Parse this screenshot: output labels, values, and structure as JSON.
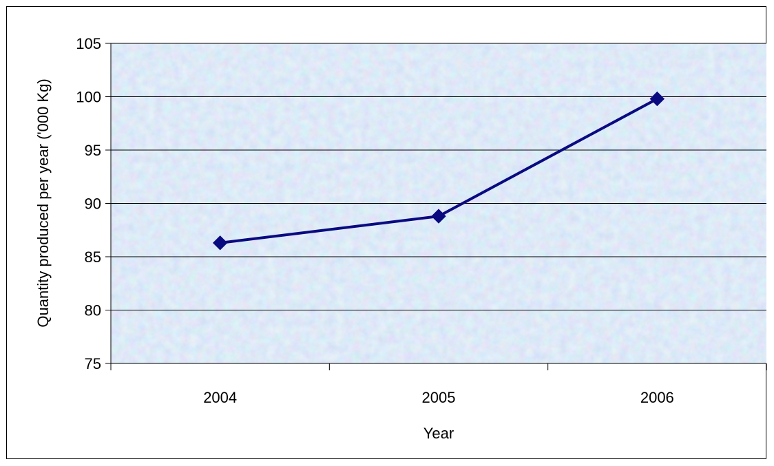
{
  "chart_data": {
    "type": "line",
    "title": "",
    "xlabel": "Year",
    "ylabel": "Quantity  produced per year ('000 Kg)",
    "categories": [
      "2004",
      "2005",
      "2006"
    ],
    "series": [
      {
        "values": [
          86.3,
          88.8,
          99.8
        ]
      }
    ],
    "ylim": [
      75,
      105
    ],
    "yticks": [
      75,
      80,
      85,
      90,
      95,
      100,
      105
    ],
    "grid": true,
    "legend": "none",
    "marker": "diamond",
    "colors": {
      "line": "#0a0a80",
      "gridline": "#000000",
      "plot_background": "#c4d8f2"
    }
  }
}
